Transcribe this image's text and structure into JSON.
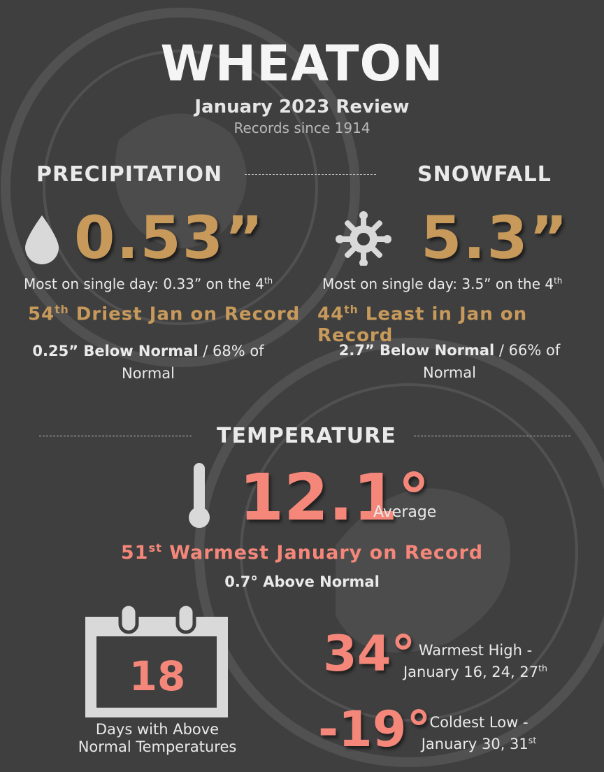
{
  "header": {
    "title": "WHEATON",
    "subtitle": "January 2023 Review",
    "records_note": "Records since 1914"
  },
  "precipitation": {
    "heading": "PRECIPITATION",
    "value": "0.53”",
    "single_day_prefix": "Most on single day: 0.33” on the 4",
    "single_day_sup": "th",
    "rank_num": "54",
    "rank_sup": "th",
    "rank_text": " Driest Jan on Record",
    "below_bold": "0.25” Below Normal",
    "below_rest": " / 68% of",
    "below_line2": "Normal",
    "icon": "raindrop-icon"
  },
  "snowfall": {
    "heading": "SNOWFALL",
    "value": "5.3”",
    "single_day_prefix": "Most on single day: 3.5” on the 4",
    "single_day_sup": "th",
    "rank_num": "44",
    "rank_sup": "th",
    "rank_text": " Least in Jan on Record",
    "below_bold": "2.7” Below Normal",
    "below_rest": " / 66% of",
    "below_line2": "Normal",
    "icon": "snowflake-icon"
  },
  "temperature": {
    "heading": "TEMPERATURE",
    "average_value": "12.1°",
    "average_label": "Average",
    "rank_num": "51",
    "rank_sup": "st",
    "rank_text": " Warmest January on Record",
    "above_normal": "0.7° Above Normal",
    "icon": "thermometer-icon"
  },
  "days_above": {
    "count": "18",
    "label_line1": "Days with Above",
    "label_line2": "Normal Temperatures",
    "icon": "calendar-icon"
  },
  "warmest_high": {
    "value": "34°",
    "label_line1": "Warmest High -",
    "label_line2": "January 16, 24, 27",
    "label_sup": "th"
  },
  "coldest_low": {
    "value": "-19°",
    "label_line1": "Coldest Low -",
    "label_line2": "January 30, 31",
    "label_sup": "st"
  },
  "colors": {
    "background": "#3f3f3f",
    "accent_tan": "#c79a5b",
    "accent_pink": "#f4877a",
    "icon_gray": "#d9d9d9"
  }
}
